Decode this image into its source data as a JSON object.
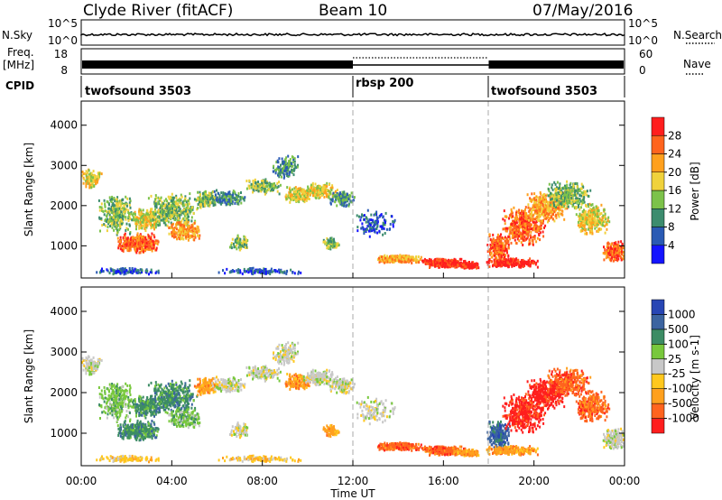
{
  "header": {
    "station": "Clyde River (fitACF)",
    "beam": "Beam 10",
    "date": "07/May/2016"
  },
  "top_panels": {
    "nsky_label": "N.Sky",
    "nsky_tick_high": "10^5",
    "nsky_tick_low": "10^0",
    "nsearch_label": "N.Search",
    "freq_label_1": "Freq.",
    "freq_label_2": "[MHz]",
    "freq_ticks": [
      "18",
      "8"
    ],
    "nave_ticks": [
      "60",
      "0"
    ],
    "nave_label": "Nave",
    "cpid_label": "CPID",
    "cpid_segments": [
      {
        "label": "twofsound 3503",
        "start_hour": 0
      },
      {
        "label": "rbsp 200",
        "start_hour": 12
      },
      {
        "label": "twofsound 3503",
        "start_hour": 18
      }
    ]
  },
  "chart_data": [
    {
      "type": "heatmap",
      "name": "power",
      "ylabel": "Slant Range [km]",
      "yticks": [
        "1000",
        "2000",
        "3000",
        "4000"
      ],
      "ylim": [
        200,
        4600
      ],
      "xlim": [
        0,
        24
      ],
      "colorbar_label": "Power [dB]",
      "colorbar_ticks": [
        "4",
        "8",
        "12",
        "16",
        "20",
        "24",
        "28"
      ],
      "colorbar_colors": [
        "#1414ff",
        "#2a5ab4",
        "#3c8c6e",
        "#7cc24a",
        "#f0d23c",
        "#ffa01e",
        "#ff641e",
        "#ff1e1e"
      ],
      "mode_boundaries": [
        12,
        18
      ]
    },
    {
      "type": "heatmap",
      "name": "velocity",
      "ylabel": "Slant Range [km]",
      "yticks": [
        "1000",
        "2000",
        "3000",
        "4000"
      ],
      "ylim": [
        200,
        4600
      ],
      "xlim": [
        0,
        24
      ],
      "xlabel": "Time UT",
      "xticks": [
        "00:00",
        "04:00",
        "08:00",
        "12:00",
        "16:00",
        "20:00",
        "00:00"
      ],
      "colorbar_label": "Velocity [m s-1]",
      "colorbar_ticks": [
        "1000",
        "500",
        "100",
        "25",
        "-25",
        "-100",
        "-500",
        "-1000"
      ],
      "colorbar_colors": [
        "#2846b4",
        "#3c64a0",
        "#3c8c64",
        "#78c83c",
        "#c8c8c8",
        "#ffc81e",
        "#ffa01e",
        "#ff641e",
        "#ff1e1e"
      ],
      "mode_boundaries": [
        12,
        18
      ]
    }
  ]
}
